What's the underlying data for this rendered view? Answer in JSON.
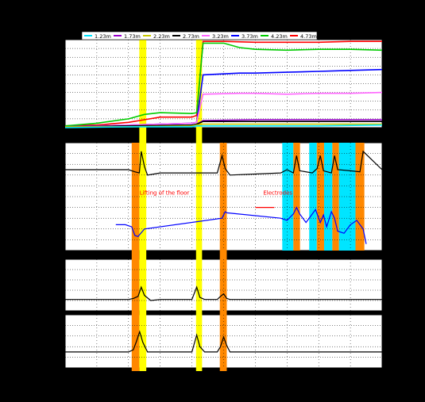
{
  "chart_data": {
    "type": "line",
    "x": [
      0,
      10,
      20,
      30,
      40,
      50,
      60,
      70,
      80,
      90,
      100
    ],
    "xlim": [
      0,
      100
    ],
    "legend": {
      "placement": "top",
      "entries": [
        {
          "label": "1.23m",
          "color": "#00e5ff"
        },
        {
          "label": "1.73m",
          "color": "#9900cc"
        },
        {
          "label": "2.23m",
          "color": "#c8c800"
        },
        {
          "label": "2.73m",
          "color": "#000000"
        },
        {
          "label": "3.23m",
          "color": "#ff66ff"
        },
        {
          "label": "3.73m",
          "color": "#0000ff"
        },
        {
          "label": "4.23m",
          "color": "#00cc00"
        },
        {
          "label": "4.73m",
          "color": "#ff0000"
        }
      ]
    },
    "bands": [
      {
        "kind": "yellow",
        "range": [
          23.4,
          25.6
        ],
        "color": "#ffff00"
      },
      {
        "kind": "yellow",
        "range": [
          41.3,
          43.2
        ],
        "color": "#ffff00"
      },
      {
        "kind": "orange",
        "range": [
          21.0,
          23.4
        ],
        "color": "#ff8800",
        "panels": [
          1,
          2
        ]
      },
      {
        "kind": "orange",
        "range": [
          48.8,
          51.0
        ],
        "color": "#ff8800",
        "panels": [
          1,
          2
        ]
      },
      {
        "kind": "cyan",
        "range": [
          68.5,
          72.0
        ],
        "color": "#00e5ff",
        "panels": [
          1
        ]
      },
      {
        "kind": "orange",
        "range": [
          72.0,
          74.1
        ],
        "color": "#ff8800",
        "panels": [
          1
        ]
      },
      {
        "kind": "cyan",
        "range": [
          77.0,
          79.4
        ],
        "color": "#00e5ff",
        "panels": [
          1
        ]
      },
      {
        "kind": "orange",
        "range": [
          79.4,
          81.7
        ],
        "color": "#ff8800",
        "panels": [
          1
        ]
      },
      {
        "kind": "cyan",
        "range": [
          81.7,
          84.3
        ],
        "color": "#00e5ff",
        "panels": [
          1
        ]
      },
      {
        "kind": "orange",
        "range": [
          84.3,
          86.4
        ],
        "color": "#ff8800",
        "panels": [
          1
        ]
      },
      {
        "kind": "cyan",
        "range": [
          86.4,
          91.6
        ],
        "color": "#00e5ff",
        "panels": [
          1
        ]
      },
      {
        "kind": "orange",
        "range": [
          91.6,
          94.4
        ],
        "color": "#ff8800",
        "panels": [
          1
        ]
      }
    ],
    "annotations": [
      {
        "text": "Lifting of the floor",
        "x": 23.5,
        "panel": 1,
        "color": "#ff0000"
      },
      {
        "text": "Electrodes",
        "x": 62.5,
        "panel": 1,
        "color": "#ff0000"
      }
    ],
    "panels": [
      {
        "name": "temperature",
        "ylim": [
          0,
          100
        ],
        "series": [
          {
            "name": "4.73m",
            "color": "#ff0000",
            "x": [
              0,
              10,
              20,
              25,
              30,
              40,
              41.5,
              43.5,
              50,
              60,
              70,
              80,
              90,
              100
            ],
            "y": [
              2,
              3,
              6,
              9,
              12,
              12,
              14,
              98,
              98,
              97,
              97,
              97,
              98,
              98
            ]
          },
          {
            "name": "4.23m",
            "color": "#00cc00",
            "x": [
              0,
              10,
              20,
              25,
              30,
              40,
              41.5,
              43.5,
              50,
              55,
              60,
              70,
              80,
              90,
              100
            ],
            "y": [
              2,
              5,
              10,
              15,
              17,
              16,
              17,
              96,
              96,
              91,
              89,
              88,
              89,
              89,
              88
            ]
          },
          {
            "name": "3.73m",
            "color": "#0000ff",
            "x": [
              0,
              10,
              20,
              30,
              40,
              41.5,
              43.5,
              55,
              60,
              70,
              80,
              90,
              100
            ],
            "y": [
              1,
              2,
              3,
              4,
              5,
              6,
              60,
              62,
              62,
              63,
              64,
              65,
              66
            ]
          },
          {
            "name": "3.23m",
            "color": "#ff66ff",
            "x": [
              0,
              10,
              20,
              30,
              40,
              41.5,
              43.5,
              55,
              60,
              70,
              80,
              90,
              100
            ],
            "y": [
              1,
              2,
              3,
              4,
              5,
              6,
              38,
              39,
              39,
              38,
              39,
              39,
              40
            ]
          },
          {
            "name": "1.73m",
            "color": "#9900cc",
            "x": [
              0,
              20,
              40,
              41.5,
              43.5,
              60,
              80,
              100
            ],
            "y": [
              1,
              2,
              3,
              4,
              8,
              9,
              9,
              9
            ]
          },
          {
            "name": "2.73m",
            "color": "#000000",
            "x": [
              0,
              20,
              40,
              41.5,
              43.5,
              60,
              80,
              100
            ],
            "y": [
              1,
              2,
              3,
              4,
              7,
              7,
              7,
              7
            ]
          },
          {
            "name": "2.23m",
            "color": "#c8c800",
            "x": [
              0,
              20,
              40,
              41.5,
              43.5,
              60,
              80,
              100
            ],
            "y": [
              1,
              1,
              2,
              3,
              4,
              4,
              4,
              4
            ]
          },
          {
            "name": "1.23m",
            "color": "#00e5ff",
            "x": [
              0,
              20,
              40,
              41.5,
              43.5,
              60,
              80,
              100
            ],
            "y": [
              0,
              1,
              1,
              2,
              2,
              2,
              2,
              3
            ]
          }
        ]
      },
      {
        "name": "panel-2",
        "ylim": [
          0,
          100
        ],
        "series": [
          {
            "name": "black",
            "color": "#000000",
            "x": [
              0,
              20,
              22,
              23.4,
              24,
              25,
              26,
              30,
              48,
              49.5,
              50.5,
              52,
              68,
              70,
              72,
              73,
              74,
              78,
              79.5,
              80.5,
              81.5,
              84,
              85,
              86,
              90,
              93,
              94,
              100
            ],
            "y": [
              75,
              75,
              73,
              72,
              92,
              78,
              70,
              72,
              72,
              88,
              76,
              70,
              72,
              75,
              72,
              88,
              74,
              72,
              76,
              88,
              74,
              72,
              88,
              75,
              74,
              73,
              92,
              75
            ]
          },
          {
            "name": "red",
            "color": "#ff0000",
            "x": [
              60,
              62,
              64,
              66
            ],
            "y": [
              40,
              40,
              40,
              40
            ]
          },
          {
            "name": "blue",
            "color": "#0000ff",
            "x": [
              16,
              19,
              21,
              22,
              23,
              25,
              49.5,
              50.5,
              51,
              68,
              70,
              72,
              73,
              74,
              76,
              77.5,
              79,
              80.5,
              81.5,
              82.5,
              84,
              85,
              86,
              88,
              90,
              92,
              94,
              95
            ],
            "y": [
              24,
              24,
              22,
              14,
              13,
              20,
              30,
              36,
              35,
              30,
              28,
              34,
              40,
              34,
              26,
              32,
              38,
              26,
              33,
              22,
              36,
              30,
              18,
              16,
              24,
              28,
              20,
              6
            ]
          }
        ]
      },
      {
        "name": "panel-3",
        "ylim": [
          0,
          100
        ],
        "series": [
          {
            "name": "black",
            "color": "#000000",
            "x": [
              0,
              20,
              21.5,
              23,
              24,
              25,
              27,
              30,
              40,
              41.5,
              42.5,
              44,
              48,
              49,
              50,
              51,
              52,
              60,
              70,
              80,
              90,
              100
            ],
            "y": [
              22,
              22,
              24,
              28,
              46,
              30,
              20,
              22,
              22,
              46,
              26,
              22,
              22,
              28,
              33,
              24,
              22,
              22,
              22,
              22,
              22,
              22
            ]
          }
        ]
      },
      {
        "name": "panel-4",
        "ylim": [
          0,
          100
        ],
        "series": [
          {
            "name": "black",
            "color": "#000000",
            "x": [
              0,
              20,
              21.5,
              22.5,
              23.5,
              24.5,
              26,
              30,
              40,
              41.5,
              42.5,
              44,
              48,
              49,
              50,
              51,
              52,
              60,
              70,
              80,
              90,
              100
            ],
            "y": [
              30,
              30,
              34,
              50,
              68,
              48,
              30,
              30,
              30,
              62,
              40,
              30,
              30,
              40,
              58,
              42,
              30,
              30,
              30,
              30,
              30,
              30
            ]
          }
        ]
      }
    ]
  }
}
